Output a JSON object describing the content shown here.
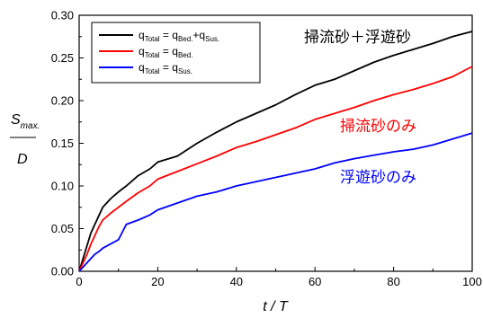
{
  "chart_data": {
    "type": "line",
    "xlabel": "t / T",
    "ylabel": {
      "numerator": "S",
      "numerator_sub": "max.",
      "denominator": "D"
    },
    "xlim": [
      0,
      100
    ],
    "ylim": [
      0,
      0.3
    ],
    "x_ticks": [
      "0",
      "20",
      "40",
      "60",
      "80",
      "100"
    ],
    "y_ticks": [
      "0.00",
      "0.05",
      "0.10",
      "0.15",
      "0.20",
      "0.25",
      "0.30"
    ],
    "grid": false,
    "legend_position": "top-left",
    "legend": [
      {
        "base": "q",
        "sub1": "Total",
        "eq": " = q",
        "sub2": "Bed.",
        "plus": "+q",
        "sub3": "Sus.",
        "color": "#000000"
      },
      {
        "base": "q",
        "sub1": "Total",
        "eq": " = q",
        "sub2": "Bed.",
        "plus": "",
        "sub3": "",
        "color": "#ff0000"
      },
      {
        "base": "q",
        "sub1": "Total",
        "eq": " = q",
        "sub2": "Sus.",
        "plus": "",
        "sub3": "",
        "color": "#0000ff"
      }
    ],
    "annotations": [
      {
        "text": "掃流砂＋浮遊砂",
        "color": "#000000"
      },
      {
        "text": "掃流砂のみ",
        "color": "#ff0000"
      },
      {
        "text": "浮遊砂のみ",
        "color": "#0000ff"
      }
    ],
    "series": [
      {
        "color": "#000000",
        "x": [
          0,
          1,
          2,
          3,
          4,
          5,
          6,
          8,
          10,
          12,
          15,
          18,
          20,
          25,
          30,
          35,
          40,
          45,
          50,
          55,
          60,
          65,
          70,
          75,
          80,
          85,
          90,
          95,
          100
        ],
        "y": [
          0.0,
          0.015,
          0.03,
          0.045,
          0.055,
          0.065,
          0.075,
          0.085,
          0.093,
          0.1,
          0.112,
          0.12,
          0.128,
          0.135,
          0.15,
          0.163,
          0.175,
          0.185,
          0.195,
          0.207,
          0.218,
          0.225,
          0.235,
          0.245,
          0.253,
          0.26,
          0.267,
          0.275,
          0.281
        ]
      },
      {
        "color": "#ff0000",
        "x": [
          0,
          1,
          2,
          3,
          4,
          5,
          6,
          8,
          10,
          12,
          15,
          18,
          20,
          25,
          30,
          35,
          40,
          45,
          50,
          55,
          60,
          65,
          70,
          75,
          80,
          85,
          90,
          95,
          100
        ],
        "y": [
          0.0,
          0.01,
          0.02,
          0.032,
          0.042,
          0.052,
          0.06,
          0.068,
          0.075,
          0.082,
          0.092,
          0.1,
          0.108,
          0.117,
          0.126,
          0.135,
          0.145,
          0.152,
          0.16,
          0.168,
          0.178,
          0.185,
          0.192,
          0.2,
          0.207,
          0.213,
          0.22,
          0.228,
          0.24
        ]
      },
      {
        "color": "#0000ff",
        "x": [
          0,
          1,
          2,
          3,
          4,
          5,
          6,
          8,
          10,
          12,
          15,
          18,
          20,
          25,
          30,
          35,
          40,
          45,
          50,
          55,
          60,
          65,
          70,
          75,
          80,
          85,
          90,
          95,
          100
        ],
        "y": [
          0.0,
          0.005,
          0.01,
          0.015,
          0.02,
          0.023,
          0.027,
          0.032,
          0.037,
          0.055,
          0.06,
          0.066,
          0.072,
          0.08,
          0.088,
          0.093,
          0.1,
          0.105,
          0.11,
          0.115,
          0.12,
          0.127,
          0.132,
          0.136,
          0.14,
          0.143,
          0.148,
          0.155,
          0.162
        ]
      }
    ]
  }
}
